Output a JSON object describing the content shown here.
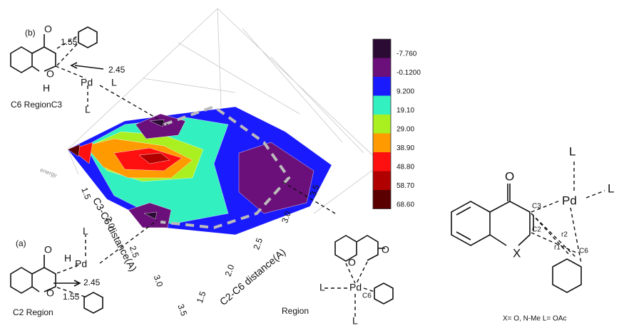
{
  "chart_data": {
    "type": "surface",
    "x_label": "C2-C6 distance(A)",
    "y_label": "C3-C6 distance(A)",
    "z_label": "energy",
    "xlim": [
      1.5,
      3.5
    ],
    "xticks": [
      1.5,
      {
        "value": 2,
        "label": "2.0"
      },
      2.5,
      {
        "value": 3,
        "label": "3.0"
      },
      3.5
    ],
    "ylim": [
      1.5,
      3.5
    ],
    "yticks": [
      1.5,
      {
        "value": 2,
        "label": "2.0"
      },
      2.5,
      {
        "value": 3,
        "label": "3.0"
      },
      3.5
    ],
    "colorbar": [
      {
        "value": -7.76,
        "label": "-7.760",
        "color": "#2b0a33"
      },
      {
        "value": -0.12,
        "label": "-0.1200",
        "color": "#6b0f7a"
      },
      {
        "value": 9.2,
        "label": "9.200",
        "color": "#1a1aff"
      },
      {
        "value": 19.1,
        "label": "19.10",
        "color": "#33f0c0"
      },
      {
        "value": 29,
        "label": "29.00",
        "color": "#aaf020"
      },
      {
        "value": 38.9,
        "label": "38.90",
        "color": "#ff9a00"
      },
      {
        "value": 48.8,
        "label": "48.80",
        "color": "#ff1010"
      },
      {
        "value": 58.7,
        "label": "58.70",
        "color": "#b00000"
      },
      {
        "value": 68.6,
        "label": "68.60",
        "color": "#5a0000"
      }
    ]
  },
  "annotations": {
    "panel_b": "(b)",
    "panel_a": "(a)",
    "region_b": "C6 RegionC3",
    "region_a": "C2 Region",
    "region_c": "Region",
    "b_atoms": [
      "O",
      "O",
      "H",
      "Pd",
      "L",
      "L"
    ],
    "b_dist": [
      "1.55",
      "2.45"
    ],
    "a_atoms": [
      "O",
      "O",
      "H",
      "Pd",
      "L"
    ],
    "a_dist": [
      "2.45",
      "1.55"
    ],
    "c_atoms": [
      "O",
      "O",
      "Pd",
      "L",
      "L",
      "C6"
    ],
    "right_atoms": [
      "O",
      "X",
      "Pd",
      "L",
      "L",
      "C3",
      "C2",
      "C6",
      "r2",
      "r1"
    ],
    "right_caption": "X= O, N-Me  L= OAc"
  }
}
